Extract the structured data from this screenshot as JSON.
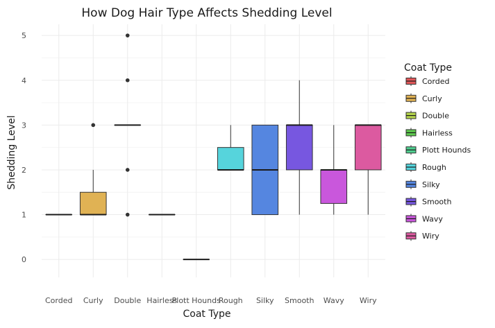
{
  "chart_data": {
    "type": "boxplot",
    "title": "How Dog Hair Type Affects Shedding Level",
    "xlabel": "Coat Type",
    "ylabel": "Shedding Level",
    "ylim": [
      -0.4,
      5.25
    ],
    "yticks": [
      0,
      1,
      2,
      3,
      4,
      5
    ],
    "grid": true,
    "legend_position": "right",
    "legend_title": "Coat Type",
    "categories": [
      "Corded",
      "Curly",
      "Double",
      "Hairless",
      "Plott Hounds",
      "Rough",
      "Silky",
      "Smooth",
      "Wavy",
      "Wiry"
    ],
    "series": [
      {
        "name": "Corded",
        "color": "#e15759",
        "box": {
          "min": 1,
          "q1": 1,
          "median": 1,
          "q3": 1,
          "max": 1
        },
        "outliers": []
      },
      {
        "name": "Curly",
        "color": "#e0b254",
        "box": {
          "min": 1,
          "q1": 1,
          "median": 1,
          "q3": 1.5,
          "max": 2
        },
        "outliers": [
          3
        ]
      },
      {
        "name": "Double",
        "color": "#b4d44c",
        "box": {
          "min": 3,
          "q1": 3,
          "median": 3,
          "q3": 3,
          "max": 3
        },
        "outliers": [
          5,
          4,
          2,
          1
        ]
      },
      {
        "name": "Hairless",
        "color": "#5ec94f",
        "box": {
          "min": 1,
          "q1": 1,
          "median": 1,
          "q3": 1,
          "max": 1
        },
        "outliers": []
      },
      {
        "name": "Plott Hounds",
        "color": "#4fce8f",
        "box": {
          "min": 0,
          "q1": 0,
          "median": 0,
          "q3": 0,
          "max": 0
        },
        "outliers": []
      },
      {
        "name": "Rough",
        "color": "#56d4dc",
        "box": {
          "min": 2,
          "q1": 2,
          "median": 2,
          "q3": 2.5,
          "max": 3
        },
        "outliers": []
      },
      {
        "name": "Silky",
        "color": "#5586e0",
        "box": {
          "min": 1,
          "q1": 1,
          "median": 2,
          "q3": 3,
          "max": 3
        },
        "outliers": []
      },
      {
        "name": "Smooth",
        "color": "#7757e0",
        "box": {
          "min": 1,
          "q1": 2,
          "median": 3,
          "q3": 3,
          "max": 4
        },
        "outliers": []
      },
      {
        "name": "Wavy",
        "color": "#c957dc",
        "box": {
          "min": 1,
          "q1": 1.25,
          "median": 2,
          "q3": 2,
          "max": 3
        },
        "outliers": []
      },
      {
        "name": "Wiry",
        "color": "#dc5aa0",
        "box": {
          "min": 1,
          "q1": 2,
          "median": 3,
          "q3": 3,
          "max": 3
        },
        "outliers": []
      }
    ]
  }
}
